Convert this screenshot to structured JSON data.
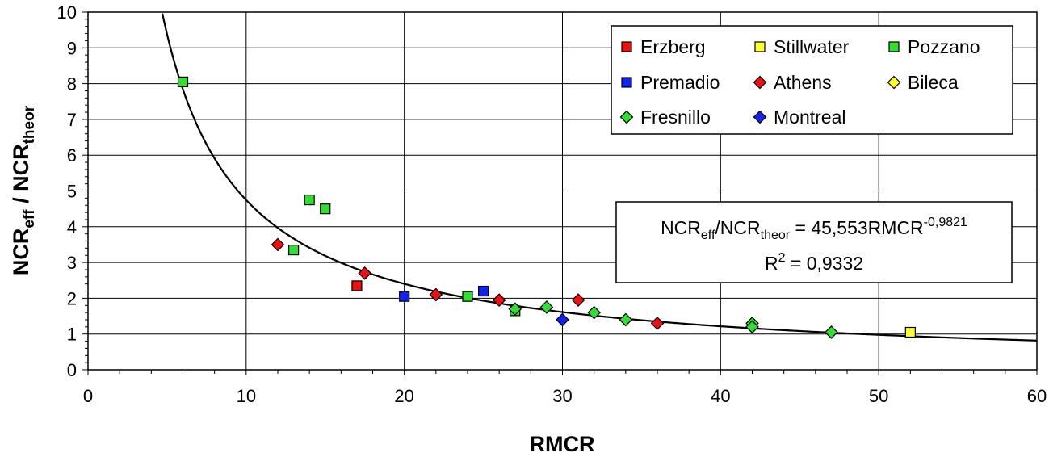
{
  "chart_data": {
    "type": "scatter",
    "xlabel": "RMCR",
    "ylabel": {
      "main1": "NCR",
      "sub1": "eff",
      "main2": " / NCR",
      "sub2": "theor"
    },
    "xlim": [
      0,
      60
    ],
    "ylim": [
      0,
      10
    ],
    "xticks": [
      "0",
      "10",
      "20",
      "30",
      "40",
      "50",
      "60"
    ],
    "yticks": [
      "0",
      "1",
      "2",
      "3",
      "4",
      "5",
      "6",
      "7",
      "8",
      "9",
      "10"
    ],
    "grid": true,
    "legend_position": "top-right",
    "colors": {
      "red": "#ee1111",
      "yellow": "#ffff33",
      "green": "#33dd33",
      "blue": "#1122ee",
      "curve": "#000000"
    },
    "series": [
      {
        "name": "Erzberg",
        "marker": "square",
        "color": "#ee1111",
        "points": [
          [
            17,
            2.35
          ]
        ]
      },
      {
        "name": "Stillwater",
        "marker": "square",
        "color": "#ffff33",
        "points": [
          [
            52,
            1.05
          ]
        ]
      },
      {
        "name": "Pozzano",
        "marker": "square",
        "color": "#33dd33",
        "points": [
          [
            6,
            8.05
          ],
          [
            13,
            3.35
          ],
          [
            14,
            4.75
          ],
          [
            15,
            4.5
          ],
          [
            24,
            2.05
          ],
          [
            27,
            1.65
          ]
        ]
      },
      {
        "name": "Premadio",
        "marker": "square",
        "color": "#1122ee",
        "points": [
          [
            20,
            2.05
          ],
          [
            25,
            2.2
          ]
        ]
      },
      {
        "name": "Athens",
        "marker": "diamond",
        "color": "#ee1111",
        "points": [
          [
            12,
            3.5
          ],
          [
            17.5,
            2.7
          ],
          [
            22,
            2.1
          ],
          [
            26,
            1.95
          ],
          [
            31,
            1.95
          ],
          [
            36,
            1.3
          ]
        ]
      },
      {
        "name": "Bileca",
        "marker": "diamond",
        "color": "#ffff33",
        "points": []
      },
      {
        "name": "Fresnillo",
        "marker": "diamond",
        "color": "#33dd33",
        "points": [
          [
            27,
            1.7
          ],
          [
            29,
            1.75
          ],
          [
            32,
            1.6
          ],
          [
            34,
            1.4
          ],
          [
            42,
            1.3
          ],
          [
            42,
            1.2
          ],
          [
            47,
            1.05
          ]
        ]
      },
      {
        "name": "Montreal",
        "marker": "diamond",
        "color": "#1122ee",
        "points": [
          [
            30,
            1.4
          ]
        ]
      }
    ],
    "fit": {
      "type": "power",
      "a": 45.553,
      "b": -0.9821,
      "x_range": [
        4,
        60
      ]
    },
    "annotation": {
      "line1": {
        "p1": "NCR",
        "s1": "eff",
        "p2": "/NCR",
        "s2": "theor",
        "p3": " = 45,553RMCR",
        "sup": "-0,9821"
      },
      "line2": {
        "p1": "R",
        "sup": "2",
        "p2": " = 0,9332"
      }
    }
  }
}
